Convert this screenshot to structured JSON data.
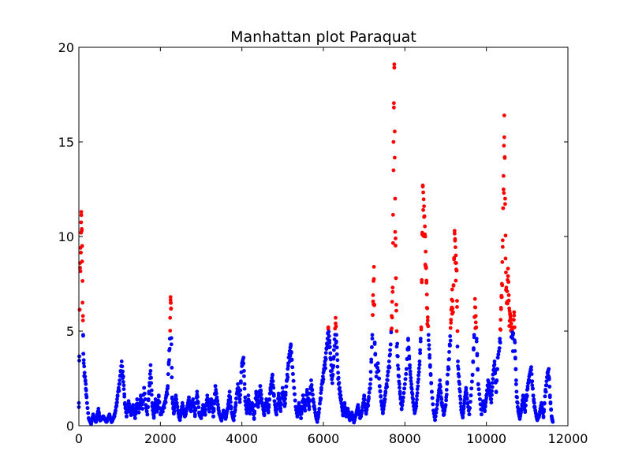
{
  "chart_data": {
    "type": "scatter",
    "title": "Manhattan plot Paraquat",
    "xlabel": "",
    "ylabel": "",
    "xlim": [
      0,
      12000
    ],
    "ylim": [
      0,
      20
    ],
    "x_ticks": [
      0,
      2000,
      4000,
      6000,
      8000,
      10000,
      12000
    ],
    "y_ticks": [
      0,
      5,
      10,
      15,
      20
    ],
    "grid": false,
    "legend": "none",
    "significance_threshold": 5,
    "colors": {
      "below_threshold": "#0000ff",
      "above_threshold": "#ff0000"
    },
    "series": [
      {
        "type": "signal",
        "points": [
          [
            0,
            1.2
          ],
          [
            30,
            8.6
          ],
          [
            50,
            10.2
          ],
          [
            60,
            11.3
          ],
          [
            80,
            9.5
          ],
          [
            100,
            5.8
          ],
          [
            110,
            3.8
          ],
          [
            140,
            2.8
          ],
          [
            170,
            2.2
          ],
          [
            200,
            1.2
          ],
          [
            240,
            0.4
          ],
          [
            300,
            0.1
          ],
          [
            350,
            0.6
          ],
          [
            420,
            0.2
          ],
          [
            480,
            0.9
          ],
          [
            520,
            0.3
          ],
          [
            600,
            0.5
          ],
          [
            680,
            0.2
          ],
          [
            750,
            0.6
          ],
          [
            800,
            0.2
          ],
          [
            850,
            0.4
          ],
          [
            900,
            0.8
          ],
          [
            950,
            1.6
          ],
          [
            1000,
            2.4
          ],
          [
            1050,
            3.4
          ],
          [
            1090,
            2.6
          ],
          [
            1130,
            1.2
          ],
          [
            1170,
            0.5
          ],
          [
            1220,
            1.3
          ],
          [
            1280,
            0.6
          ],
          [
            1330,
            1.1
          ],
          [
            1380,
            0.4
          ],
          [
            1430,
            1.4
          ],
          [
            1470,
            0.7
          ],
          [
            1520,
            1.6
          ],
          [
            1560,
            0.9
          ],
          [
            1600,
            2.0
          ],
          [
            1640,
            1.1
          ],
          [
            1680,
            0.6
          ],
          [
            1720,
            1.8
          ],
          [
            1760,
            3.2
          ],
          [
            1800,
            1.2
          ],
          [
            1840,
            0.5
          ],
          [
            1880,
            1.4
          ],
          [
            1920,
            0.8
          ],
          [
            1960,
            1.6
          ],
          [
            2000,
            0.6
          ],
          [
            2060,
            0.9
          ],
          [
            2120,
            1.3
          ],
          [
            2180,
            2.1
          ],
          [
            2230,
            4.6
          ],
          [
            2250,
            6.8
          ],
          [
            2260,
            6.2
          ],
          [
            2290,
            1.5
          ],
          [
            2330,
            0.7
          ],
          [
            2380,
            1.6
          ],
          [
            2430,
            0.8
          ],
          [
            2480,
            0.3
          ],
          [
            2540,
            1.2
          ],
          [
            2600,
            0.5
          ],
          [
            2650,
            0.9
          ],
          [
            2700,
            1.5
          ],
          [
            2750,
            0.8
          ],
          [
            2800,
            1.4
          ],
          [
            2850,
            0.6
          ],
          [
            2900,
            1.8
          ],
          [
            2950,
            0.7
          ],
          [
            3000,
            0.4
          ],
          [
            3050,
            1.1
          ],
          [
            3100,
            0.6
          ],
          [
            3150,
            1.6
          ],
          [
            3200,
            0.9
          ],
          [
            3250,
            1.4
          ],
          [
            3300,
            0.5
          ],
          [
            3350,
            2.1
          ],
          [
            3400,
            1.3
          ],
          [
            3450,
            0.6
          ],
          [
            3500,
            0.3
          ],
          [
            3550,
            0.8
          ],
          [
            3600,
            0.4
          ],
          [
            3650,
            0.9
          ],
          [
            3700,
            1.8
          ],
          [
            3750,
            0.7
          ],
          [
            3800,
            0.3
          ],
          [
            3850,
            1.2
          ],
          [
            3900,
            2.2
          ],
          [
            3950,
            1.4
          ],
          [
            4000,
            3.3
          ],
          [
            4040,
            3.6
          ],
          [
            4080,
            1.5
          ],
          [
            4120,
            0.8
          ],
          [
            4160,
            1.6
          ],
          [
            4200,
            0.7
          ],
          [
            4250,
            1.2
          ],
          [
            4300,
            0.4
          ],
          [
            4350,
            1.8
          ],
          [
            4400,
            1.0
          ],
          [
            4450,
            2.1
          ],
          [
            4500,
            1.2
          ],
          [
            4550,
            0.6
          ],
          [
            4600,
            1.4
          ],
          [
            4650,
            0.8
          ],
          [
            4700,
            2.0
          ],
          [
            4750,
            2.7
          ],
          [
            4800,
            1.3
          ],
          [
            4850,
            0.6
          ],
          [
            4900,
            1.7
          ],
          [
            4950,
            0.9
          ],
          [
            5000,
            2.0
          ],
          [
            5050,
            1.1
          ],
          [
            5100,
            2.4
          ],
          [
            5150,
            3.6
          ],
          [
            5200,
            4.3
          ],
          [
            5240,
            3.1
          ],
          [
            5280,
            2.0
          ],
          [
            5320,
            1.0
          ],
          [
            5360,
            0.5
          ],
          [
            5400,
            1.2
          ],
          [
            5450,
            0.4
          ],
          [
            5500,
            1.6
          ],
          [
            5550,
            0.8
          ],
          [
            5600,
            1.9
          ],
          [
            5650,
            1.0
          ],
          [
            5700,
            2.4
          ],
          [
            5750,
            1.4
          ],
          [
            5800,
            0.7
          ],
          [
            5850,
            0.2
          ],
          [
            5900,
            0.9
          ],
          [
            5950,
            2.0
          ],
          [
            6000,
            2.8
          ],
          [
            6050,
            3.6
          ],
          [
            6100,
            4.6
          ],
          [
            6120,
            5.2
          ],
          [
            6150,
            4.5
          ],
          [
            6180,
            3.5
          ],
          [
            6220,
            2.6
          ],
          [
            6260,
            4.0
          ],
          [
            6300,
            5.7
          ],
          [
            6320,
            4.8
          ],
          [
            6360,
            2.8
          ],
          [
            6400,
            2.0
          ],
          [
            6440,
            1.4
          ],
          [
            6480,
            0.6
          ],
          [
            6520,
            1.2
          ],
          [
            6560,
            0.5
          ],
          [
            6600,
            0.9
          ],
          [
            6650,
            0.3
          ],
          [
            6700,
            0.7
          ],
          [
            6750,
            0.2
          ],
          [
            6800,
            0.6
          ],
          [
            6850,
            1.1
          ],
          [
            6900,
            0.4
          ],
          [
            6950,
            0.8
          ],
          [
            7000,
            1.6
          ],
          [
            7050,
            0.7
          ],
          [
            7100,
            1.3
          ],
          [
            7150,
            2.2
          ],
          [
            7200,
            4.8
          ],
          [
            7220,
            6.9
          ],
          [
            7240,
            8.4
          ],
          [
            7260,
            4.4
          ],
          [
            7300,
            2.6
          ],
          [
            7340,
            3.3
          ],
          [
            7380,
            2.1
          ],
          [
            7420,
            1.3
          ],
          [
            7460,
            0.7
          ],
          [
            7500,
            1.4
          ],
          [
            7550,
            2.2
          ],
          [
            7600,
            3.1
          ],
          [
            7650,
            4.3
          ],
          [
            7700,
            7.3
          ],
          [
            7720,
            15.0
          ],
          [
            7740,
            19.1
          ],
          [
            7760,
            12.0
          ],
          [
            7780,
            7.8
          ],
          [
            7800,
            5.0
          ],
          [
            7840,
            3.0
          ],
          [
            7880,
            1.8
          ],
          [
            7920,
            0.9
          ],
          [
            7960,
            1.5
          ],
          [
            8000,
            2.2
          ],
          [
            8040,
            3.0
          ],
          [
            8080,
            4.6
          ],
          [
            8120,
            3.2
          ],
          [
            8160,
            2.2
          ],
          [
            8200,
            1.4
          ],
          [
            8240,
            0.8
          ],
          [
            8280,
            1.2
          ],
          [
            8320,
            2.3
          ],
          [
            8360,
            3.4
          ],
          [
            8400,
            5.2
          ],
          [
            8440,
            12.7
          ],
          [
            8470,
            11.6
          ],
          [
            8500,
            10.0
          ],
          [
            8520,
            8.4
          ],
          [
            8550,
            6.2
          ],
          [
            8580,
            4.8
          ],
          [
            8620,
            3.2
          ],
          [
            8660,
            1.8
          ],
          [
            8700,
            0.8
          ],
          [
            8740,
            0.3
          ],
          [
            8780,
            0.9
          ],
          [
            8820,
            1.6
          ],
          [
            8860,
            2.4
          ],
          [
            8900,
            1.4
          ],
          [
            8950,
            0.6
          ],
          [
            9000,
            1.1
          ],
          [
            9050,
            2.7
          ],
          [
            9100,
            4.3
          ],
          [
            9130,
            5.6
          ],
          [
            9160,
            7.2
          ],
          [
            9180,
            6.0
          ],
          [
            9220,
            10.3
          ],
          [
            9250,
            9.0
          ],
          [
            9270,
            8.2
          ],
          [
            9300,
            3.4
          ],
          [
            9340,
            2.2
          ],
          [
            9380,
            1.0
          ],
          [
            9420,
            0.5
          ],
          [
            9460,
            1.3
          ],
          [
            9500,
            2.0
          ],
          [
            9540,
            1.2
          ],
          [
            9580,
            0.6
          ],
          [
            9620,
            1.6
          ],
          [
            9660,
            2.7
          ],
          [
            9700,
            4.8
          ],
          [
            9720,
            6.7
          ],
          [
            9740,
            5.8
          ],
          [
            9760,
            4.6
          ],
          [
            9800,
            2.2
          ],
          [
            9840,
            1.4
          ],
          [
            9880,
            0.6
          ],
          [
            9920,
            1.3
          ],
          [
            9960,
            0.8
          ],
          [
            10000,
            1.6
          ],
          [
            10040,
            2.4
          ],
          [
            10080,
            2.1
          ],
          [
            10120,
            1.4
          ],
          [
            10160,
            2.7
          ],
          [
            10200,
            3.4
          ],
          [
            10240,
            1.8
          ],
          [
            10280,
            3.6
          ],
          [
            10320,
            4.1
          ],
          [
            10350,
            5.6
          ],
          [
            10380,
            7.5
          ],
          [
            10400,
            9.8
          ],
          [
            10420,
            13.2
          ],
          [
            10440,
            16.4
          ],
          [
            10460,
            12.0
          ],
          [
            10480,
            8.1
          ],
          [
            10500,
            6.5
          ],
          [
            10530,
            8.3
          ],
          [
            10560,
            6.2
          ],
          [
            10590,
            5.8
          ],
          [
            10620,
            5.2
          ],
          [
            10650,
            4.8
          ],
          [
            10680,
            6.0
          ],
          [
            10710,
            3.6
          ],
          [
            10740,
            1.8
          ],
          [
            10780,
            0.9
          ],
          [
            10820,
            0.4
          ],
          [
            10860,
            0.9
          ],
          [
            10900,
            1.6
          ],
          [
            10950,
            0.8
          ],
          [
            11000,
            1.9
          ],
          [
            11050,
            2.6
          ],
          [
            11100,
            3.1
          ],
          [
            11150,
            1.6
          ],
          [
            11200,
            0.8
          ],
          [
            11250,
            0.3
          ],
          [
            11300,
            0.6
          ],
          [
            11350,
            1.2
          ],
          [
            11400,
            0.5
          ],
          [
            11450,
            1.9
          ],
          [
            11500,
            2.8
          ],
          [
            11530,
            3.0
          ],
          [
            11560,
            1.6
          ],
          [
            11600,
            0.5
          ],
          [
            11630,
            0.2
          ]
        ]
      }
    ]
  }
}
